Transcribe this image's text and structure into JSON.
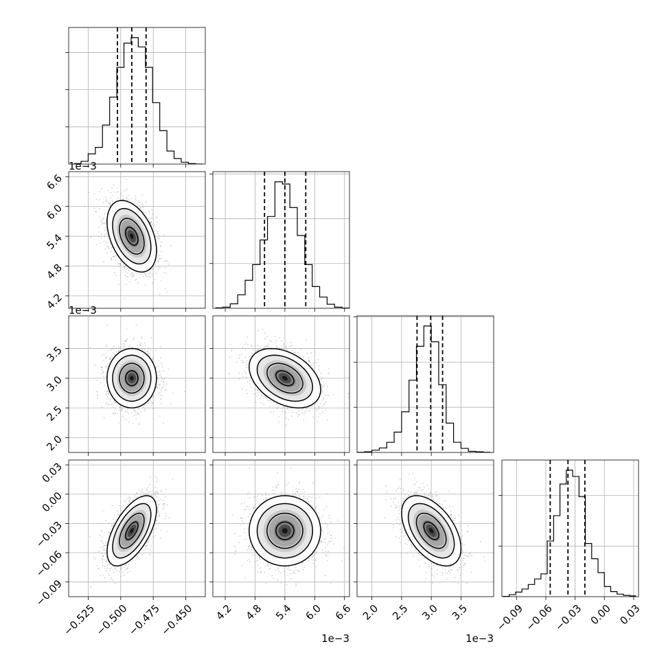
{
  "chart_data": {
    "type": "corner",
    "parameters": 4,
    "grid": true,
    "histograms": [
      {
        "index": 0,
        "bin_edges": [
          -0.536,
          -0.5305,
          -0.525,
          -0.5195,
          -0.514,
          -0.5085,
          -0.503,
          -0.4975,
          -0.492,
          -0.4865,
          -0.481,
          -0.4755,
          -0.47,
          -0.4645,
          -0.459,
          -0.4535,
          -0.448,
          -0.4425,
          -0.437
        ],
        "counts": [
          3,
          15,
          55,
          90,
          210,
          360,
          520,
          650,
          680,
          630,
          520,
          330,
          180,
          70,
          30,
          10,
          3,
          0
        ],
        "quantiles": [
          -0.5025,
          -0.4915,
          -0.4805
        ]
      },
      {
        "index": 1,
        "scale_label": "1e−3",
        "bin_edges": [
          4.0,
          4.15,
          4.3,
          4.45,
          4.6,
          4.75,
          4.9,
          5.05,
          5.2,
          5.35,
          5.5,
          5.65,
          5.8,
          5.95,
          6.1,
          6.25,
          6.4,
          6.55,
          6.7
        ],
        "counts": [
          2,
          5,
          20,
          60,
          125,
          195,
          305,
          410,
          565,
          555,
          450,
          325,
          195,
          97,
          50,
          18,
          5,
          1
        ],
        "quantiles": [
          4.99,
          5.4,
          5.82
        ]
      },
      {
        "index": 2,
        "scale_label": "1e−3",
        "bin_edges": [
          1.75,
          1.875,
          2.0,
          2.125,
          2.25,
          2.375,
          2.5,
          2.625,
          2.75,
          2.875,
          3.0,
          3.125,
          3.25,
          3.375,
          3.5,
          3.625,
          3.75,
          3.875,
          4.0
        ],
        "counts": [
          1,
          3,
          10,
          20,
          45,
          90,
          180,
          320,
          470,
          560,
          490,
          300,
          130,
          45,
          18,
          5,
          3,
          1
        ],
        "quantiles": [
          2.76,
          2.99,
          3.19
        ]
      },
      {
        "index": 3,
        "bin_edges": [
          -0.104,
          -0.0975,
          -0.091,
          -0.0845,
          -0.078,
          -0.0715,
          -0.065,
          -0.0585,
          -0.052,
          -0.0455,
          -0.039,
          -0.0325,
          -0.026,
          -0.0195,
          -0.013,
          -0.0065,
          0.0,
          0.0065,
          0.013,
          0.0195,
          0.026,
          0.0325
        ],
        "counts": [
          1,
          8,
          18,
          30,
          48,
          70,
          90,
          220,
          320,
          445,
          500,
          475,
          395,
          210,
          150,
          95,
          40,
          20,
          10,
          5,
          3
        ],
        "quantiles": [
          -0.0555,
          -0.0373,
          -0.02
        ]
      }
    ],
    "pairs": [
      {
        "x": 0,
        "y": 1,
        "center": [
          -0.4915,
          5.4
        ],
        "sd": [
          0.0095,
          0.36
        ],
        "rho": -0.4
      },
      {
        "x": 0,
        "y": 2,
        "center": [
          -0.4915,
          3.0
        ],
        "sd": [
          0.0095,
          0.25
        ],
        "rho": 0.0
      },
      {
        "x": 1,
        "y": 2,
        "center": [
          5.4,
          3.0
        ],
        "sd": [
          0.36,
          0.25
        ],
        "rho": -0.38
      },
      {
        "x": 0,
        "y": 3,
        "center": [
          -0.4915,
          -0.0375
        ],
        "sd": [
          0.0095,
          0.018
        ],
        "rho": 0.6
      },
      {
        "x": 1,
        "y": 3,
        "center": [
          5.4,
          -0.0375
        ],
        "sd": [
          0.36,
          0.018
        ],
        "rho": 0.0
      },
      {
        "x": 2,
        "y": 3,
        "center": [
          3.0,
          -0.0375
        ],
        "sd": [
          0.25,
          0.018
        ],
        "rho": -0.5
      }
    ],
    "axes": [
      {
        "index": 0,
        "range": [
          -0.54,
          -0.435
        ],
        "ticks": [
          -0.525,
          -0.5,
          -0.475,
          -0.45
        ],
        "tick_labels": [
          "−0.525",
          "−0.500",
          "−0.475",
          "−0.450"
        ]
      },
      {
        "index": 1,
        "range": [
          3.95,
          6.7
        ],
        "ticks": [
          4.2,
          4.8,
          5.4,
          6.0,
          6.6
        ],
        "tick_labels": [
          "4.2",
          "4.8",
          "5.4",
          "6.0",
          "6.6"
        ],
        "offset_label": "1e−3"
      },
      {
        "index": 2,
        "range": [
          1.75,
          4.05
        ],
        "ticks": [
          2.0,
          2.5,
          3.0,
          3.5
        ],
        "tick_labels": [
          "2.0",
          "2.5",
          "3.0",
          "3.5"
        ],
        "offset_label": "1e−3"
      },
      {
        "index": 3,
        "range": [
          -0.105,
          0.035
        ],
        "ticks": [
          -0.09,
          -0.06,
          -0.03,
          0.0,
          0.03
        ],
        "tick_labels": [
          "−0.09",
          "−0.06",
          "−0.03",
          "0.00",
          "0.03"
        ]
      }
    ]
  }
}
